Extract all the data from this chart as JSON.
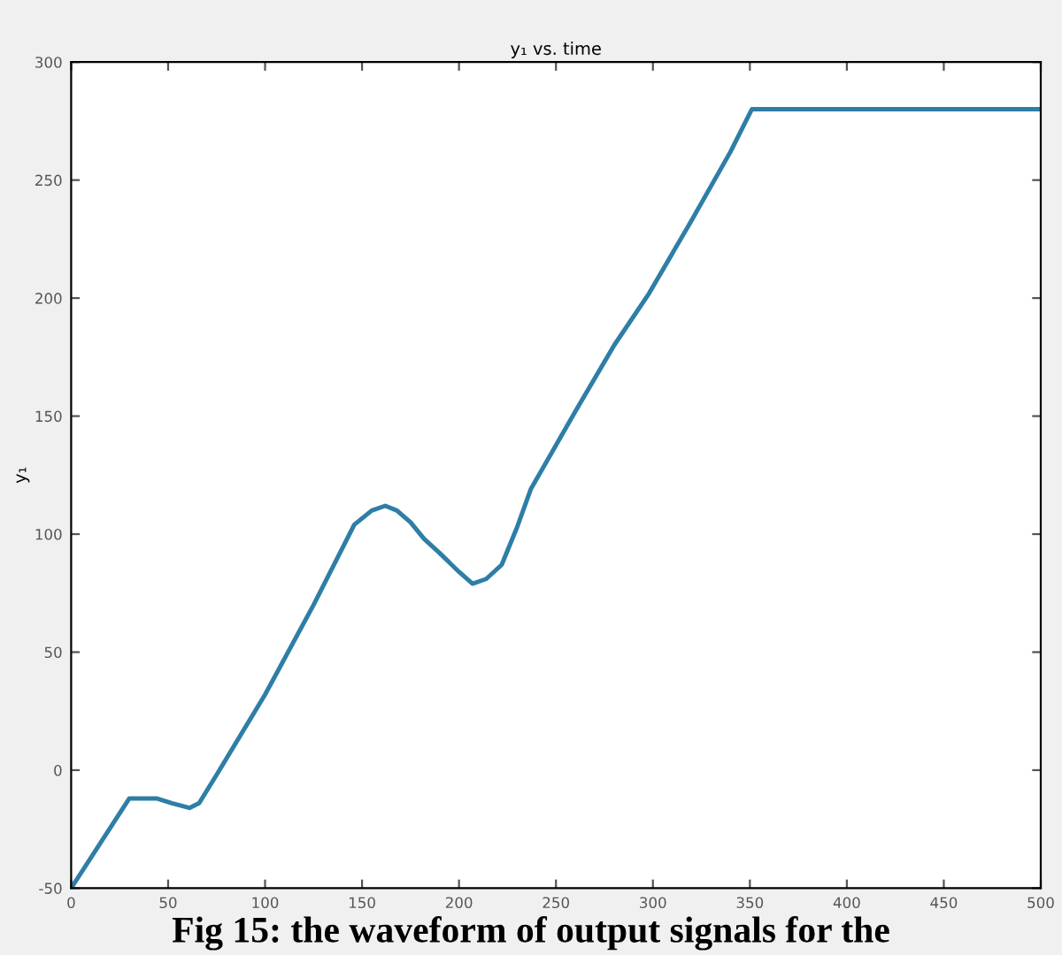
{
  "chart_data": {
    "type": "line",
    "title": "y₁ vs. time",
    "ylabel": "y₁",
    "x": [
      0,
      30,
      44,
      52,
      61,
      66,
      75,
      100,
      125,
      146,
      155,
      162,
      168,
      175,
      182,
      190,
      200,
      207,
      214,
      222,
      230,
      237,
      260,
      280,
      298,
      320,
      340,
      351,
      500
    ],
    "series": [
      {
        "color": "#2e7ea6",
        "values": [
          -50,
          -12,
          -12,
          -14,
          -16,
          -14,
          -2,
          32,
          70,
          104,
          110,
          112,
          110,
          105,
          98,
          92,
          84,
          79,
          81,
          87,
          103,
          119,
          152,
          180,
          202,
          233,
          262,
          280,
          280
        ]
      }
    ],
    "xlim": [
      0,
      500
    ],
    "ylim": [
      -50,
      300
    ],
    "xticks": [
      0,
      50,
      100,
      150,
      200,
      250,
      300,
      350,
      400,
      450,
      500
    ],
    "yticks": [
      -50,
      0,
      50,
      100,
      150,
      200,
      250,
      300
    ],
    "grid": false,
    "legend": false,
    "marker": "none",
    "line_style": "solid",
    "annotations": [
      "Fig 15: the waveform of output signals for the"
    ]
  }
}
